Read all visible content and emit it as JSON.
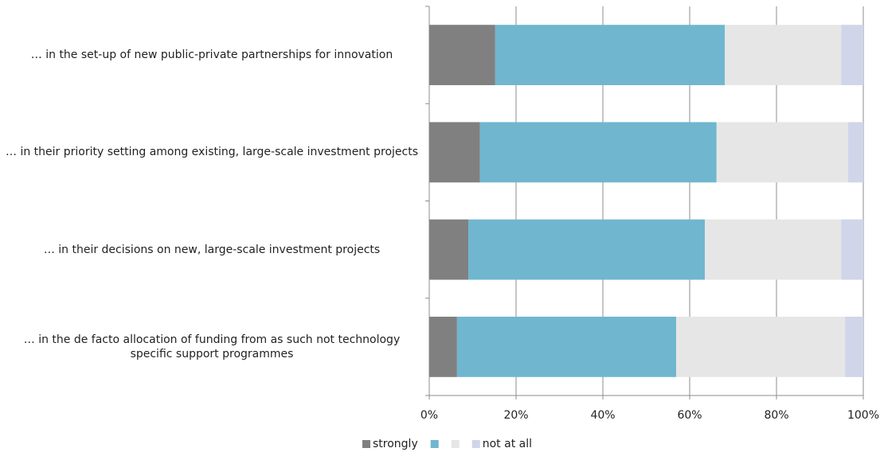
{
  "chart_data": {
    "type": "stacked_barh",
    "categories": [
      "… in the set-up of new public-private partnerships for innovation",
      "… in their priority setting among existing, large-scale investment projects",
      "… in their decisions on new, large-scale investment projects",
      "… in the de facto allocation of funding from as such not technology specific support programmes"
    ],
    "series": [
      {
        "name": "strongly",
        "color": "#808080",
        "values": [
          15.2,
          11.7,
          9.0,
          6.4
        ]
      },
      {
        "color": "#70b6cf",
        "values": [
          52.9,
          54.5,
          54.5,
          50.5
        ]
      },
      {
        "color": "#e6e6e6",
        "values": [
          26.8,
          30.3,
          31.4,
          38.9
        ]
      },
      {
        "name": "not at all",
        "color": "#d0d5ea",
        "values": [
          5.1,
          3.5,
          5.1,
          4.2
        ]
      }
    ],
    "xlim": [
      0,
      100
    ],
    "xticks": [
      {
        "value": 0,
        "label": "0%"
      },
      {
        "value": 20,
        "label": "20%"
      },
      {
        "value": 40,
        "label": "40%"
      },
      {
        "value": 60,
        "label": "60%"
      },
      {
        "value": 80,
        "label": "80%"
      },
      {
        "value": 100,
        "label": "100%"
      }
    ],
    "grid": true
  }
}
